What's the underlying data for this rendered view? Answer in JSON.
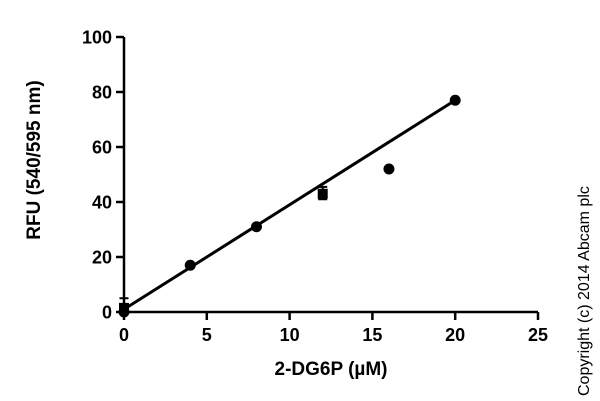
{
  "figure": {
    "background": "#ffffff",
    "ink_color": "#000000"
  },
  "copyright": "Copyright (c) 2014 Abcam plc",
  "chart_data": {
    "type": "scatter",
    "title": "",
    "xlabel": "2-DG6P (µM)",
    "ylabel": "RFU (540/595 nm)",
    "xlim": [
      0,
      25
    ],
    "ylim": [
      0,
      100
    ],
    "xticks": [
      0,
      5,
      10,
      15,
      20,
      25
    ],
    "yticks": [
      0,
      20,
      40,
      60,
      80,
      100
    ],
    "grid": false,
    "legend": false,
    "series": [
      {
        "name": "samples-circle",
        "marker": "circle",
        "marker_size": 11,
        "color": "#000000",
        "points": [
          {
            "x": 0,
            "y": 0
          },
          {
            "x": 4,
            "y": 17
          },
          {
            "x": 8,
            "y": 31
          },
          {
            "x": 16,
            "y": 52
          },
          {
            "x": 20,
            "y": 77
          }
        ]
      },
      {
        "name": "samples-square",
        "marker": "square",
        "marker_size": 10,
        "color": "#000000",
        "points": [
          {
            "x": 0,
            "y": 1.5,
            "err_low": 0,
            "err_high": 5
          },
          {
            "x": 12,
            "y": 43,
            "err_low": 41,
            "err_high": 45.5
          }
        ]
      }
    ],
    "fit_line": {
      "from": {
        "x": 0,
        "y": 1
      },
      "to": {
        "x": 20,
        "y": 77
      }
    }
  }
}
